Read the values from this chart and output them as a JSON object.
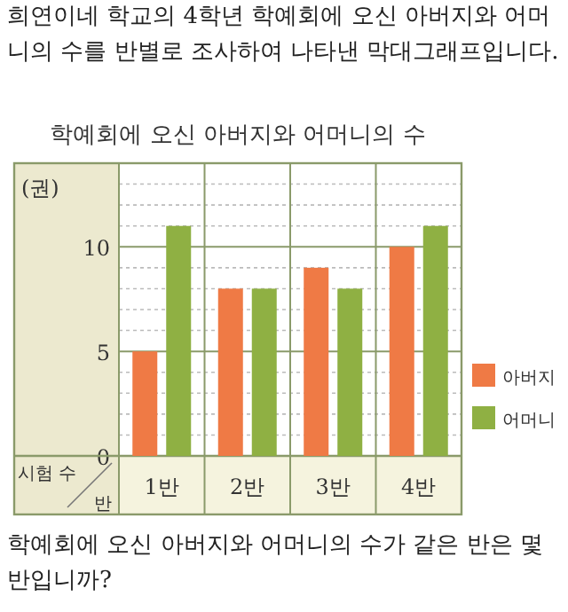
{
  "chart_data": {
    "type": "bar",
    "title": "학예회에 오신 아버지와 어머니의 수",
    "ylabel": "(권)",
    "xlabel": "반",
    "annotations": [
      "희연이네 학교의 4학년 학예회에 오신 아버지와 어머니의 수를 반별로 조사하여 나타낸 막대그래프입니다.",
      "학예회에 오신 아버지와 어머니의 수가 같은 반은 몇 반입니까?",
      "시험 수"
    ],
    "categories": [
      "1반",
      "2반",
      "3반",
      "4반"
    ],
    "series": [
      {
        "name": "아버지",
        "color": "#ef7a45",
        "values": [
          5,
          8,
          9,
          10
        ]
      },
      {
        "name": "어머니",
        "color": "#8fb043",
        "values": [
          11,
          8,
          8,
          11
        ]
      }
    ],
    "ylim": [
      0,
      14
    ],
    "yticks": [
      0,
      5,
      10
    ],
    "grid": "y",
    "legend": "bottom right"
  }
}
